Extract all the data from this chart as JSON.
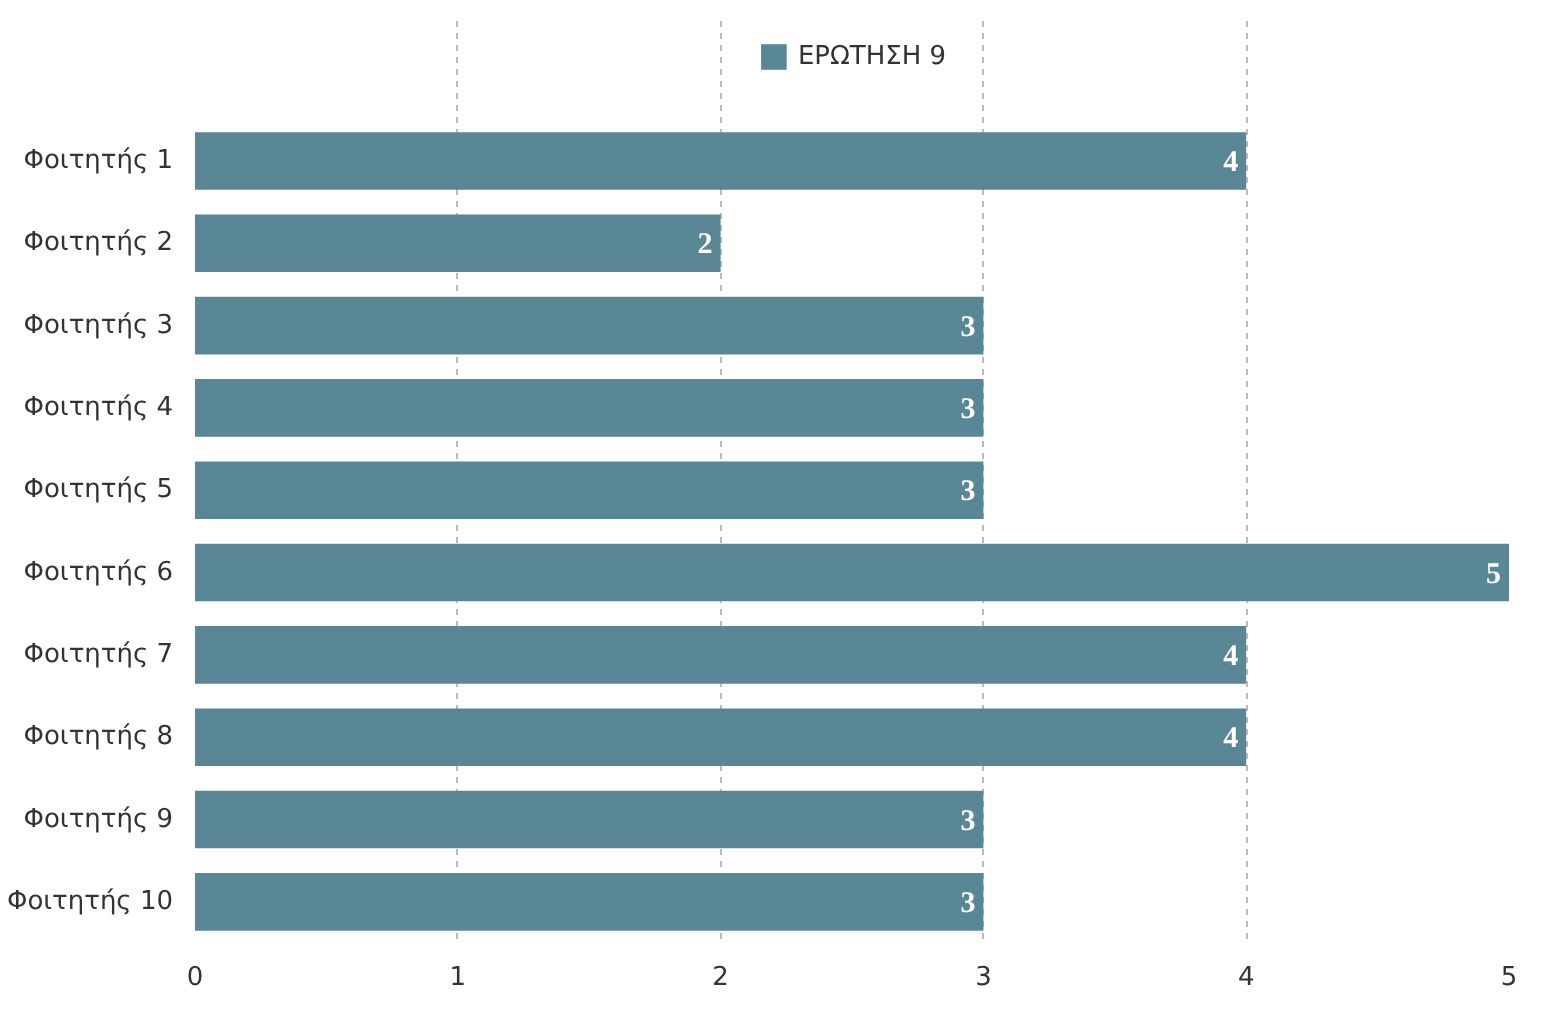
{
  "chart_data": {
    "type": "bar",
    "orientation": "horizontal",
    "categories": [
      "Φοιτητής 1",
      "Φοιτητής 2",
      "Φοιτητής 3",
      "Φοιτητής 4",
      "Φοιτητής 5",
      "Φοιτητής 6",
      "Φοιτητής 7",
      "Φοιτητής 8",
      "Φοιτητής 9",
      "Φοιτητής 10"
    ],
    "series": [
      {
        "name": "ΕΡΩΤΗΣΗ 9",
        "color": "#5a8796",
        "values": [
          4,
          2,
          3,
          3,
          3,
          5,
          4,
          4,
          3,
          3
        ]
      }
    ],
    "xlim": [
      0,
      5
    ],
    "xticks": [
      0,
      1,
      2,
      3,
      4,
      5
    ],
    "grid": "x",
    "legend": "top",
    "data_labels": true
  }
}
